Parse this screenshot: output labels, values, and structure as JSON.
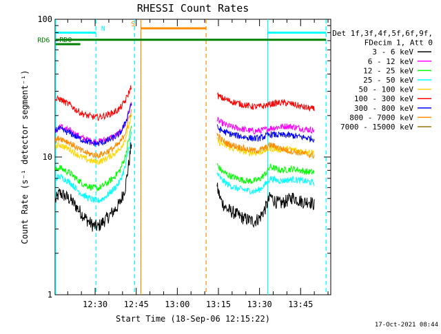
{
  "chart_data": {
    "type": "line",
    "title": "RHESSI Count Rates",
    "xlabel": "Start Time (18-Sep-06 12:15:22)",
    "ylabel": "Count Rate (s⁻¹ detector segment⁻¹)",
    "y_scale": "log",
    "ylim": [
      1,
      100
    ],
    "xlim_minutes_of_day": [
      735.4,
      836.0
    ],
    "x_ticks": [
      {
        "label": "12:30",
        "minute": 750
      },
      {
        "label": "12:45",
        "minute": 765
      },
      {
        "label": "13:00",
        "minute": 780
      },
      {
        "label": "13:15",
        "minute": 795
      },
      {
        "label": "13:30",
        "minute": 810
      },
      {
        "label": "13:45",
        "minute": 825
      }
    ],
    "y_ticks": [
      {
        "label": "1",
        "value": 1
      },
      {
        "label": "10",
        "value": 10
      },
      {
        "label": "100",
        "value": 100
      }
    ],
    "legend_header": [
      "Det 1f,3f,4f,5f,6f,9f,",
      "FDecim 1, Att 0"
    ],
    "legend_placement": "right",
    "series": [
      {
        "name": "3 - 6 keV",
        "color": "#000000",
        "segments": [
          {
            "x": [
              735.5,
              737,
              739,
              741,
              743,
              745,
              747,
              749,
              751,
              753,
              755,
              757,
              759,
              761,
              762.5,
              763.3
            ],
            "y": [
              4.8,
              5.5,
              5.2,
              4.9,
              4.4,
              3.9,
              3.5,
              3.2,
              3.1,
              3.4,
              3.7,
              4.1,
              4.6,
              6.0,
              9.5,
              13.0
            ]
          },
          {
            "x": [
              794.5,
              796,
              798,
              800,
              802,
              804,
              806,
              808,
              810,
              812,
              814,
              816,
              818,
              820,
              822,
              824,
              826,
              828,
              830
            ],
            "y": [
              6.0,
              4.8,
              4.2,
              4.0,
              3.8,
              3.6,
              3.5,
              3.4,
              3.6,
              4.2,
              5.2,
              4.7,
              4.6,
              4.8,
              5.1,
              4.9,
              4.7,
              4.8,
              4.5
            ]
          }
        ]
      },
      {
        "name": "6 - 12 keV",
        "color": "#ff00ff",
        "segments": [
          {
            "x": [
              735.5,
              737,
              739,
              741,
              743,
              745,
              747,
              749,
              751,
              753,
              755,
              757,
              759,
              761,
              762.5,
              763.3
            ],
            "y": [
              15.2,
              16.8,
              16.0,
              15.5,
              14.6,
              13.8,
              13.4,
              13.0,
              12.9,
              13.2,
              13.6,
              14.2,
              15.0,
              17.5,
              22.0,
              25.0
            ]
          },
          {
            "x": [
              794.5,
              796,
              798,
              800,
              802,
              804,
              806,
              808,
              810,
              812,
              814,
              816,
              818,
              820,
              822,
              824,
              826,
              828,
              830
            ],
            "y": [
              18.5,
              17.8,
              17.0,
              16.5,
              16.2,
              15.9,
              15.6,
              15.4,
              15.5,
              15.8,
              16.2,
              16.4,
              16.6,
              16.8,
              16.6,
              16.3,
              16.0,
              15.8,
              15.6
            ]
          }
        ]
      },
      {
        "name": "12 - 25 keV",
        "color": "#00ff00",
        "segments": [
          {
            "x": [
              735.5,
              737,
              739,
              741,
              743,
              745,
              747,
              749,
              751,
              753,
              755,
              757,
              759,
              761,
              762.5,
              763.3
            ],
            "y": [
              8.0,
              8.4,
              8.0,
              7.6,
              7.0,
              6.5,
              6.2,
              6.0,
              5.9,
              6.2,
              6.6,
              7.2,
              8.0,
              10.0,
              14.0,
              17.0
            ]
          },
          {
            "x": [
              794.5,
              796,
              798,
              800,
              802,
              804,
              806,
              808,
              810,
              812,
              814,
              816,
              818,
              820,
              822,
              824,
              826,
              828,
              830
            ],
            "y": [
              8.8,
              8.0,
              7.5,
              7.2,
              7.0,
              6.8,
              6.7,
              6.7,
              6.9,
              7.5,
              8.5,
              8.2,
              8.0,
              8.1,
              8.2,
              8.1,
              7.9,
              7.8,
              7.7
            ]
          }
        ]
      },
      {
        "name": "25 - 50 keV",
        "color": "#00ffff",
        "segments": [
          {
            "x": [
              735.5,
              737,
              739,
              741,
              743,
              745,
              747,
              749,
              751,
              753,
              755,
              757,
              759,
              761,
              762.5,
              763.3
            ],
            "y": [
              7.0,
              7.2,
              6.9,
              6.5,
              5.9,
              5.4,
              5.1,
              4.9,
              4.8,
              5.0,
              5.4,
              5.9,
              6.6,
              8.5,
              12.0,
              15.0
            ]
          },
          {
            "x": [
              794.5,
              796,
              798,
              800,
              802,
              804,
              806,
              808,
              810,
              812,
              814,
              816,
              818,
              820,
              822,
              824,
              826,
              828,
              830
            ],
            "y": [
              7.6,
              6.9,
              6.4,
              6.1,
              5.9,
              5.8,
              5.7,
              5.6,
              5.8,
              6.3,
              7.0,
              6.8,
              6.7,
              6.8,
              6.9,
              6.8,
              6.7,
              6.6,
              6.5
            ]
          }
        ]
      },
      {
        "name": "50 - 100 keV",
        "color": "#ffd700",
        "segments": [
          {
            "x": [
              735.5,
              737,
              739,
              741,
              743,
              745,
              747,
              749,
              751,
              753,
              755,
              757,
              759,
              761,
              762.5,
              763.3
            ],
            "y": [
              11.8,
              12.3,
              11.8,
              11.3,
              10.6,
              10.0,
              9.6,
              9.3,
              9.2,
              9.5,
              10.0,
              10.6,
              11.4,
              13.5,
              17.5,
              20.0
            ]
          },
          {
            "x": [
              794.5,
              796,
              798,
              800,
              802,
              804,
              806,
              808,
              810,
              812,
              814,
              816,
              818,
              820,
              822,
              824,
              826,
              828,
              830
            ],
            "y": [
              13.2,
              12.5,
              12.0,
              11.6,
              11.3,
              11.0,
              10.8,
              10.7,
              10.8,
              11.2,
              11.6,
              11.4,
              11.3,
              11.4,
              11.3,
              11.1,
              11.0,
              10.9,
              10.8
            ]
          }
        ]
      },
      {
        "name": "100 - 300 keV",
        "color": "#ff0000",
        "segments": [
          {
            "x": [
              735.5,
              737,
              739,
              741,
              743,
              745,
              747,
              749,
              751,
              753,
              755,
              757,
              759,
              761,
              762.5,
              763.3
            ],
            "y": [
              26.0,
              26.5,
              25.0,
              23.8,
              22.0,
              20.8,
              20.0,
              19.6,
              19.4,
              19.8,
              20.4,
              21.2,
              22.4,
              25.5,
              30.0,
              33.0
            ]
          },
          {
            "x": [
              794.5,
              796,
              798,
              800,
              802,
              804,
              806,
              808,
              810,
              812,
              814,
              816,
              818,
              820,
              822,
              824,
              826,
              828,
              830
            ],
            "y": [
              28.0,
              27.0,
              26.0,
              25.2,
              24.6,
              24.0,
              23.5,
              23.2,
              23.2,
              23.6,
              24.2,
              24.6,
              24.8,
              24.6,
              24.2,
              23.6,
              23.0,
              22.6,
              22.2
            ]
          }
        ]
      },
      {
        "name": "300 - 800 keV",
        "color": "#0000ff",
        "segments": [
          {
            "x": [
              735.5,
              737,
              739,
              741,
              743,
              745,
              747,
              749,
              751,
              753,
              755,
              757,
              759,
              761,
              762.5,
              763.3
            ],
            "y": [
              15.8,
              16.0,
              15.4,
              14.9,
              14.1,
              13.4,
              13.0,
              12.6,
              12.5,
              12.8,
              13.3,
              13.9,
              14.8,
              17.5,
              22.0,
              25.0
            ]
          },
          {
            "x": [
              794.5,
              796,
              798,
              800,
              802,
              804,
              806,
              808,
              810,
              812,
              814,
              816,
              818,
              820,
              822,
              824,
              826,
              828,
              830
            ],
            "y": [
              16.4,
              15.6,
              15.0,
              14.6,
              14.3,
              14.0,
              13.8,
              13.6,
              13.7,
              14.1,
              14.6,
              14.5,
              14.4,
              14.4,
              14.3,
              14.1,
              13.9,
              13.7,
              13.5
            ]
          }
        ]
      },
      {
        "name": "800 - 7000 keV",
        "color": "#ff8c00",
        "segments": [
          {
            "x": [
              735.5,
              737,
              739,
              741,
              743,
              745,
              747,
              749,
              751,
              753,
              755,
              757,
              759,
              761,
              762.5,
              763.3
            ],
            "y": [
              13.2,
              13.8,
              13.2,
              12.6,
              11.8,
              11.1,
              10.7,
              10.4,
              10.3,
              10.6,
              11.1,
              11.7,
              12.6,
              15.0,
              19.5,
              22.0
            ]
          },
          {
            "x": [
              794.5,
              796,
              798,
              800,
              802,
              804,
              806,
              808,
              810,
              812,
              814,
              816,
              818,
              820,
              822,
              824,
              826,
              828,
              830
            ],
            "y": [
              14.6,
              13.4,
              12.6,
              12.2,
              11.9,
              11.6,
              11.3,
              11.1,
              11.2,
              11.6,
              12.2,
              11.9,
              11.5,
              11.2,
              11.0,
              10.8,
              10.6,
              10.4,
              10.2
            ]
          }
        ]
      }
    ],
    "legend_extra_entries": [
      {
        "name": "7000 - 15000 keV",
        "color": "#9c7000"
      }
    ],
    "vertical_markers": [
      {
        "minute": 735.6,
        "color": "#00ffff",
        "style": "solid"
      },
      {
        "minute": 750.3,
        "color": "#00ffff",
        "style": "dashed"
      },
      {
        "minute": 764.4,
        "color": "#00ffff",
        "style": "dashed"
      },
      {
        "minute": 766.7,
        "color": "#ff8c00",
        "style": "solid"
      },
      {
        "minute": 790.5,
        "color": "#ff8c00",
        "style": "dashed"
      },
      {
        "minute": 813.0,
        "color": "#00ffff",
        "style": "solid"
      },
      {
        "minute": 834.3,
        "color": "#00ffff",
        "style": "dashed"
      }
    ],
    "state_bars": [
      {
        "label": "N",
        "color": "#00ffff",
        "ranges": [
          [
            735.6,
            750.3
          ],
          [
            813.0,
            834.3
          ]
        ],
        "level_value": 80,
        "label_at_minute": 752.2
      },
      {
        "label": "S",
        "color": "#ff8c00",
        "ranges": [
          [
            766.7,
            790.5
          ]
        ],
        "level_value": 86,
        "label_at_minute": 764.6
      },
      {
        "label": "RD6",
        "color": "#008000",
        "ranges": [
          [
            735.6,
            834.3
          ]
        ],
        "level_value": 71,
        "label_at_minute": 733.5
      },
      {
        "label": "RD0",
        "color": "#008000",
        "ranges": [
          [
            735.6,
            744.6
          ]
        ],
        "level_value": 66,
        "label_at_minute": 737.0
      }
    ],
    "timestamp": "17-Oct-2021 08:44"
  }
}
